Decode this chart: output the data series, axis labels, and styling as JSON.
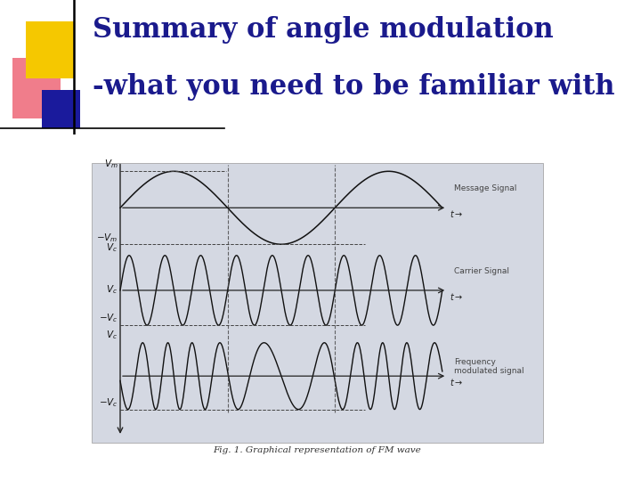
{
  "title_line1": "Summary of angle modulation",
  "title_line2": "-what you need to be familiar with",
  "title_color": "#1a1a8c",
  "title_fontsize": 22,
  "slide_bg": "#ffffff",
  "diagram_bg": "#c8cdd8",
  "diagram_inner_bg": "#d4d8e2",
  "fig_caption": "Fig. 1. Graphical representation of FM wave",
  "deco_yellow": "#f5c800",
  "deco_red": "#dd3333",
  "deco_blue": "#1a1a9c",
  "deco_pink": "#ee6677",
  "signal_color": "#111111",
  "axis_color": "#222222",
  "dashed_color": "#444444",
  "label_color": "#111111",
  "right_label_color": "#444444"
}
